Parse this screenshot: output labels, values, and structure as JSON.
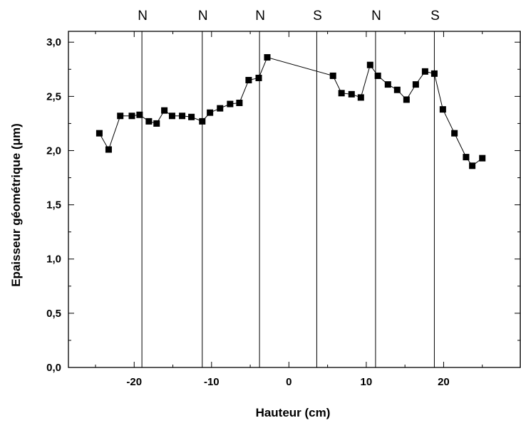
{
  "chart_data": {
    "type": "scatter",
    "xlabel": "Hauteur (cm)",
    "ylabel": "Epaisseur géométrique (μm)",
    "xlim": [
      -28.5,
      30
    ],
    "ylim": [
      0,
      3.1
    ],
    "x_ticks": [
      -20,
      -10,
      0,
      10,
      20
    ],
    "x_tick_labels": [
      "-20",
      "-10",
      "0",
      "10",
      "20"
    ],
    "y_ticks": [
      0,
      0.5,
      1.0,
      1.5,
      2.0,
      2.5,
      3.0
    ],
    "y_tick_labels": [
      "0,0",
      "0,5",
      "1,0",
      "1,5",
      "2,0",
      "2,5",
      "3,0"
    ],
    "grid": false,
    "markers": "filled-square",
    "series": [
      {
        "segments": [
          {
            "x": [
              -24.5,
              -23.3,
              -21.8,
              -20.3,
              -19.3,
              -18.1,
              -17.1,
              -16.1,
              -15.1,
              -13.8,
              -12.6,
              -11.2,
              -10.2,
              -8.9,
              -7.6,
              -6.4,
              -5.2,
              -3.9,
              -2.8,
              5.7,
              6.8,
              8.1,
              9.3,
              10.5,
              11.5,
              12.8,
              14.0,
              15.2,
              16.4,
              17.6,
              18.8,
              19.9,
              21.4,
              22.9,
              23.7,
              25.0
            ],
            "y": [
              2.16,
              2.01,
              2.32,
              2.32,
              2.33,
              2.27,
              2.25,
              2.37,
              2.32,
              2.32,
              2.31,
              2.27,
              2.35,
              2.39,
              2.43,
              2.44,
              2.65,
              2.67,
              2.86,
              2.69,
              2.53,
              2.52,
              2.49,
              2.79,
              2.69,
              2.61,
              2.56,
              2.47,
              2.61,
              2.73,
              2.71,
              2.38,
              2.16,
              1.94,
              1.86,
              1.93
            ]
          }
        ]
      }
    ],
    "vertical_lines": [
      {
        "x": -19.0,
        "label": "N"
      },
      {
        "x": -11.2,
        "label": "N"
      },
      {
        "x": -3.8,
        "label": "N"
      },
      {
        "x": 3.6,
        "label": "S"
      },
      {
        "x": 11.2,
        "label": "N"
      },
      {
        "x": 18.8,
        "label": "S"
      }
    ]
  }
}
